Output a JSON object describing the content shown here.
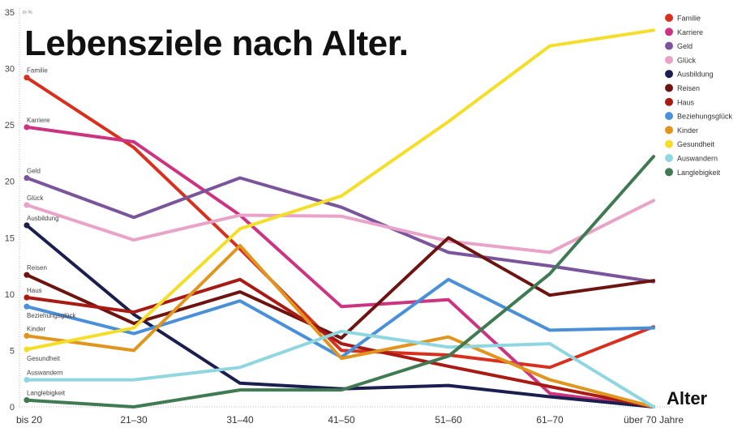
{
  "chart_data": {
    "type": "line",
    "title": "Lebensziele nach Alter.",
    "xlabel": "Alter",
    "ylabel": "in %",
    "ylim": [
      0,
      35
    ],
    "yticks": [
      0,
      5,
      10,
      15,
      20,
      25,
      30,
      35
    ],
    "categories": [
      "bis 20",
      "21–30",
      "31–40",
      "41–50",
      "51–60",
      "61–70",
      "über 70 Jahre"
    ],
    "grid": false,
    "legend": "top-right",
    "series": [
      {
        "name": "Familie",
        "color": "#d7301f",
        "values": [
          29.2,
          23.0,
          14.0,
          5.0,
          4.6,
          3.5,
          7.1
        ]
      },
      {
        "name": "Karriere",
        "color": "#cc3380",
        "values": [
          24.8,
          23.5,
          17.0,
          8.9,
          9.5,
          1.2,
          0
        ]
      },
      {
        "name": "Geld",
        "color": "#7a559c",
        "values": [
          20.3,
          16.8,
          20.3,
          17.7,
          13.7,
          12.5,
          11.1
        ]
      },
      {
        "name": "Glück",
        "color": "#e9a3c9",
        "values": [
          17.9,
          14.8,
          17.0,
          16.9,
          14.7,
          13.7,
          18.3
        ]
      },
      {
        "name": "Ausbildung",
        "color": "#1a1f4f",
        "values": [
          16.1,
          8.2,
          2.1,
          1.6,
          1.9,
          0.9,
          0
        ]
      },
      {
        "name": "Reisen",
        "color": "#6e1410",
        "values": [
          11.7,
          7.4,
          10.2,
          6.1,
          15.0,
          9.9,
          11.2
        ]
      },
      {
        "name": "Haus",
        "color": "#a81a14",
        "values": [
          9.7,
          8.4,
          11.3,
          5.6,
          3.6,
          1.8,
          0
        ]
      },
      {
        "name": "Beziehungsglück",
        "color": "#4a90d9",
        "values": [
          8.9,
          6.5,
          9.4,
          4.4,
          11.3,
          6.8,
          7.0
        ]
      },
      {
        "name": "Kinder",
        "color": "#e0951f",
        "values": [
          6.3,
          5.0,
          14.3,
          4.3,
          6.2,
          2.4,
          0
        ]
      },
      {
        "name": "Gesundheit",
        "color": "#f5de2a",
        "values": [
          5.1,
          7.0,
          15.8,
          18.7,
          25.3,
          32.0,
          33.4
        ]
      },
      {
        "name": "Auswandern",
        "color": "#8fd6e0",
        "values": [
          2.4,
          2.4,
          3.5,
          6.7,
          5.3,
          5.6,
          0
        ]
      },
      {
        "name": "Langlebigkeit",
        "color": "#3f7a52",
        "values": [
          0.6,
          0.0,
          1.5,
          1.5,
          4.5,
          11.8,
          22.2
        ]
      }
    ]
  }
}
